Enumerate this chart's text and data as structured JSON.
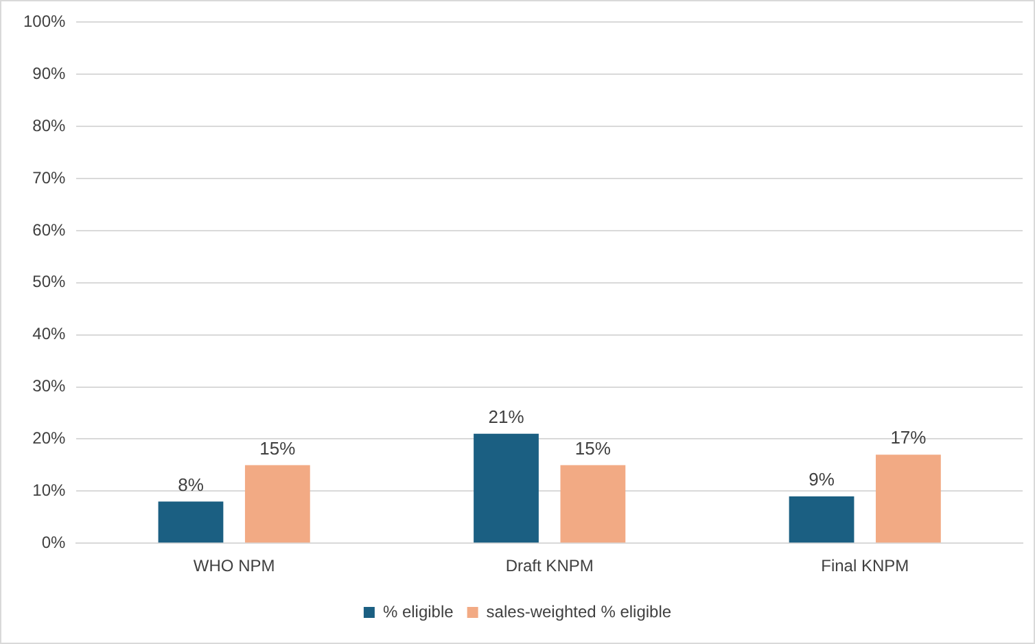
{
  "chart_data": {
    "type": "bar",
    "categories": [
      "WHO NPM",
      "Draft KNPM",
      "Final KNPM"
    ],
    "series": [
      {
        "name": "% eligible",
        "color": "#1b5f82",
        "values": [
          8,
          21,
          9
        ],
        "value_labels": [
          "8%",
          "21%",
          "9%"
        ]
      },
      {
        "name": "sales-weighted % eligible",
        "color": "#f2aa84",
        "values": [
          15,
          15,
          17
        ],
        "value_labels": [
          "15%",
          "15%",
          "17%"
        ]
      }
    ],
    "ylim": [
      0,
      100
    ],
    "yticks": [
      {
        "value": 0,
        "label": "0%"
      },
      {
        "value": 10,
        "label": "10%"
      },
      {
        "value": 20,
        "label": "20%"
      },
      {
        "value": 30,
        "label": "30%"
      },
      {
        "value": 40,
        "label": "40%"
      },
      {
        "value": 50,
        "label": "50%"
      },
      {
        "value": 60,
        "label": "60%"
      },
      {
        "value": 70,
        "label": "70%"
      },
      {
        "value": 80,
        "label": "80%"
      },
      {
        "value": 90,
        "label": "90%"
      },
      {
        "value": 100,
        "label": "100%"
      }
    ],
    "grid": "y",
    "legend": "bottom"
  }
}
